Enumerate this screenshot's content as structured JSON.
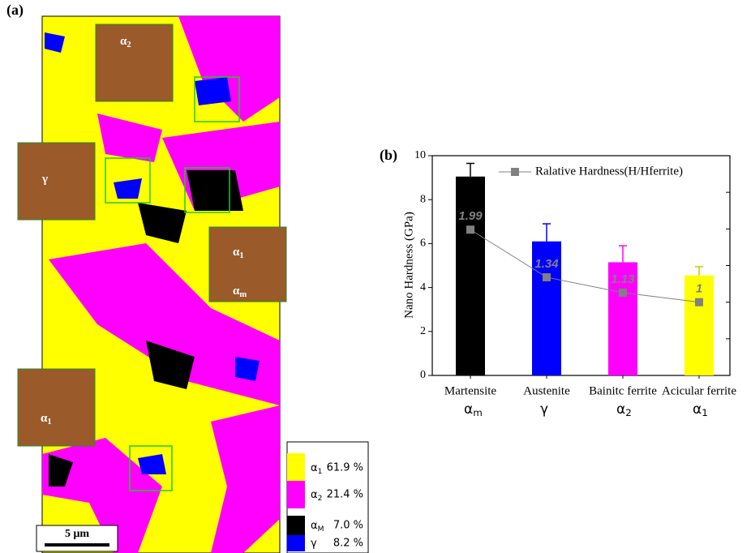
{
  "panel_a": {
    "label": "(a)",
    "scale_bar": "5 μm",
    "insets": [
      {
        "labels": [
          {
            "symbol": "α",
            "sub": "2"
          }
        ]
      },
      {
        "labels": [
          {
            "symbol": "γ"
          }
        ]
      },
      {
        "labels": [
          {
            "symbol": "α",
            "sub": "1"
          },
          {
            "symbol": "α",
            "sub": "m"
          }
        ]
      },
      {
        "labels": [
          {
            "symbol": "α",
            "sub": "1"
          }
        ]
      }
    ],
    "legend": [
      {
        "symbol": "α",
        "sub": "1",
        "color": "#ffff00",
        "value": "61.9 %"
      },
      {
        "symbol": "α",
        "sub": "2",
        "color": "#ff00ff",
        "value": "21.4 %"
      },
      {
        "symbol": "α",
        "sub": "M",
        "color": "#000000",
        "value": "7.0 %"
      },
      {
        "symbol": "γ",
        "color": "#0000ff",
        "value": "8.2 %"
      }
    ]
  },
  "chart_data": {
    "type": "bar",
    "panel_label": "(b)",
    "y_label": "Nano Hardness (GPa)",
    "categories": [
      "Martensite",
      "Austenite",
      "Bainitc ferrite",
      "Acicular ferrite"
    ],
    "category_symbols": [
      {
        "symbol": "α",
        "sub": "m"
      },
      {
        "symbol": "γ"
      },
      {
        "symbol": "α",
        "sub": "2"
      },
      {
        "symbol": "α",
        "sub": "1"
      }
    ],
    "series": [
      {
        "colors": [
          "#000000",
          "#0000ff",
          "#ff00ff",
          "#ffff00"
        ],
        "values": [
          9.05,
          6.1,
          5.15,
          4.55
        ],
        "errors": [
          0.6,
          0.8,
          0.75,
          0.4
        ]
      },
      {
        "type": "line",
        "name": "Ralative Hardness(H/Hferrite)",
        "color": "#808080",
        "axis": "y2",
        "values": [
          1.99,
          1.34,
          1.13,
          1
        ]
      }
    ],
    "ylim": [
      0,
      10
    ],
    "yticks": [
      0,
      2,
      4,
      6,
      8,
      10
    ],
    "y2lim": [
      0,
      3
    ],
    "y2ticks": [
      0,
      0.5,
      1,
      1.5,
      2,
      2.5,
      3
    ]
  }
}
